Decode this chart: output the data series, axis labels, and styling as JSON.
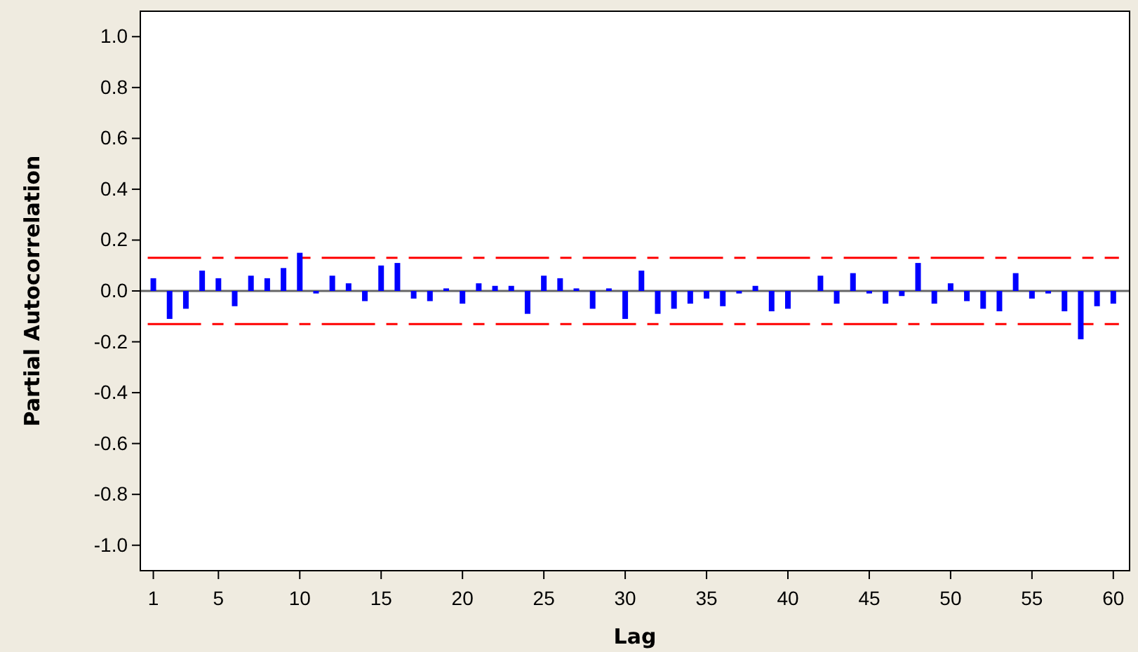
{
  "chart_data": {
    "type": "bar",
    "xlabel": "Lag",
    "ylabel": "Partial Autocorrelation",
    "x": [
      1,
      2,
      3,
      4,
      5,
      6,
      7,
      8,
      9,
      10,
      11,
      12,
      13,
      14,
      15,
      16,
      17,
      18,
      19,
      20,
      21,
      22,
      23,
      24,
      25,
      26,
      27,
      28,
      29,
      30,
      31,
      32,
      33,
      34,
      35,
      36,
      37,
      38,
      39,
      40,
      41,
      42,
      43,
      44,
      45,
      46,
      47,
      48,
      49,
      50,
      51,
      52,
      53,
      54,
      55,
      56,
      57,
      58,
      59,
      60
    ],
    "values": [
      0.05,
      -0.11,
      -0.07,
      0.08,
      0.05,
      -0.06,
      0.06,
      0.05,
      0.09,
      0.15,
      -0.01,
      0.06,
      0.03,
      -0.04,
      0.1,
      0.11,
      -0.03,
      -0.04,
      0.01,
      -0.05,
      0.03,
      0.02,
      0.02,
      -0.09,
      0.06,
      0.05,
      0.01,
      -0.07,
      0.01,
      -0.11,
      0.08,
      -0.09,
      -0.07,
      -0.05,
      -0.03,
      -0.06,
      -0.01,
      0.02,
      -0.08,
      -0.07,
      0.0,
      0.06,
      -0.05,
      0.07,
      -0.01,
      -0.05,
      -0.02,
      0.11,
      -0.05,
      0.03,
      -0.04,
      -0.07,
      -0.08,
      0.07,
      -0.03,
      -0.01,
      -0.08,
      -0.19,
      -0.06,
      -0.05
    ],
    "color": "#0000ff",
    "xlim": [
      0.2,
      61
    ],
    "xticks": [
      1,
      5,
      10,
      15,
      20,
      25,
      30,
      35,
      40,
      45,
      50,
      55,
      60
    ],
    "ylim": [
      -1.1,
      1.1
    ],
    "yticks": [
      {
        "value": -1,
        "label": "-1.0"
      },
      {
        "value": -0.8,
        "label": "-0.8"
      },
      {
        "value": -0.6,
        "label": "-0.6"
      },
      {
        "value": -0.4,
        "label": "-0.4"
      },
      {
        "value": -0.2,
        "label": "-0.2"
      },
      {
        "value": 0,
        "label": "0.0"
      },
      {
        "value": 0.2,
        "label": "0.2"
      },
      {
        "value": 0.4,
        "label": "0.4"
      },
      {
        "value": 0.6,
        "label": "0.6"
      },
      {
        "value": 0.8,
        "label": "0.8"
      },
      {
        "value": 1,
        "label": "1.0"
      }
    ],
    "ref_lines": [
      {
        "axis": "y",
        "value": 0.13,
        "color": "#ff0000",
        "line_style": "dashed"
      },
      {
        "axis": "y",
        "value": -0.13,
        "color": "#ff0000",
        "line_style": "dashed"
      }
    ]
  }
}
